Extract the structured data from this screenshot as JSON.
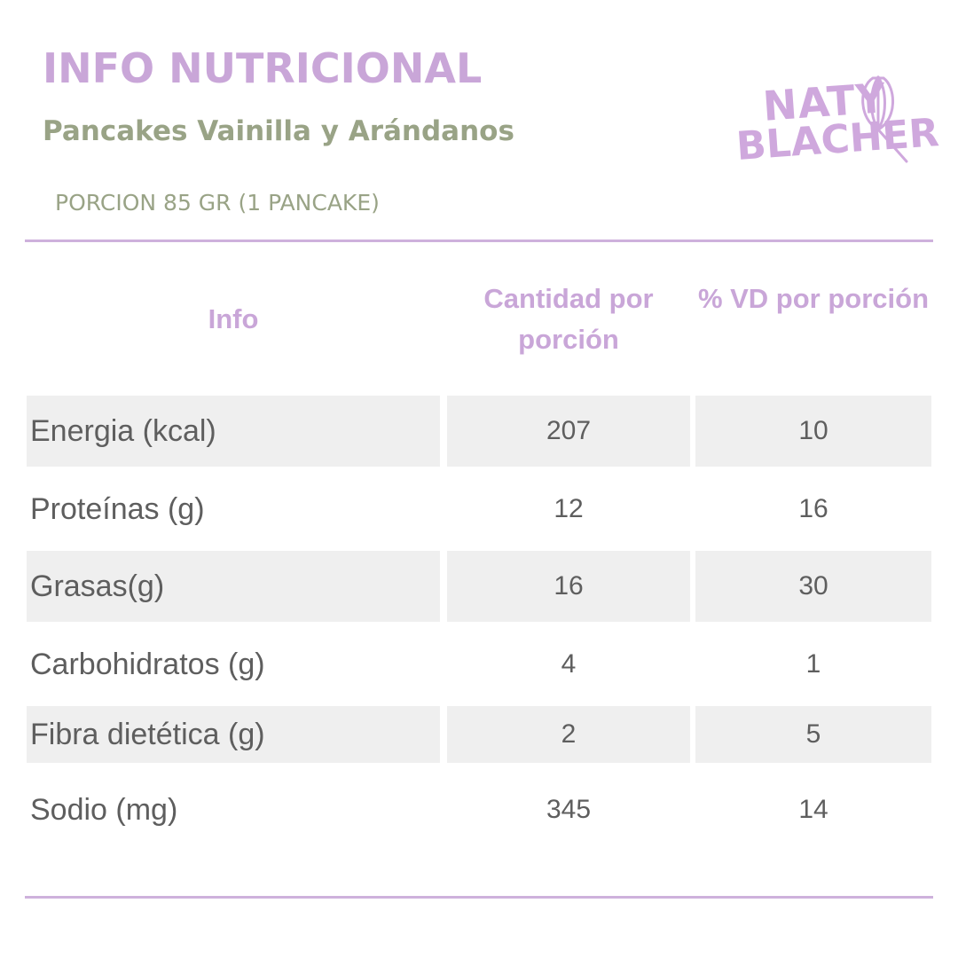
{
  "header": {
    "title": "INFO NUTRICIONAL",
    "subtitle": "Pancakes Vainilla y Arándanos",
    "portion": "PORCION 85 GR (1 PANCAKE)"
  },
  "logo": {
    "line1": "NATY",
    "line2": "BLACHER",
    "icon": "whisk-icon",
    "color": "#cfa8dd"
  },
  "table": {
    "headers": {
      "info": "Info",
      "amount": "Cantidad por porción",
      "vd": "% VD por porción"
    },
    "rows": [
      {
        "label": "Energia (kcal)",
        "amount": "207",
        "vd": "10"
      },
      {
        "label": "Proteínas (g)",
        "amount": "12",
        "vd": "16"
      },
      {
        "label": "Grasas(g)",
        "amount": "16",
        "vd": "30"
      },
      {
        "label": "Carbohidratos (g)",
        "amount": "4",
        "vd": "1"
      },
      {
        "label": "Fibra dietética (g)",
        "amount": "2",
        "vd": "5"
      },
      {
        "label": "Sodio (mg)",
        "amount": "345",
        "vd": "14"
      }
    ]
  },
  "colors": {
    "accent": "#c9a6d8",
    "secondary": "#99a386",
    "text": "#5e5e5e",
    "row_shade": "#efefef"
  }
}
